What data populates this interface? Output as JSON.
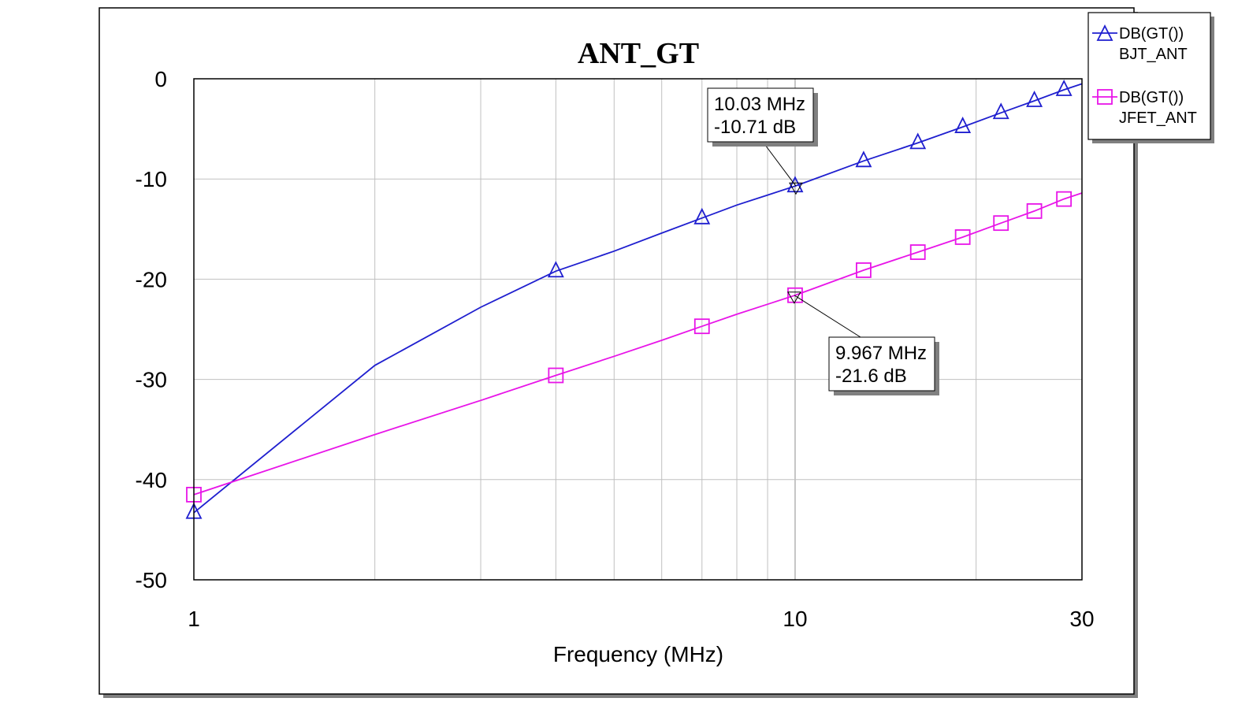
{
  "chart_data": {
    "type": "line",
    "title": "ANT_GT",
    "xlabel": "Frequency (MHz)",
    "ylabel": "",
    "x_scale": "log",
    "xlim": [
      1,
      30
    ],
    "ylim": [
      -50,
      0
    ],
    "x_ticks": [
      {
        "value": 1,
        "label": "1"
      },
      {
        "value": 10,
        "label": "10"
      },
      {
        "value": 30,
        "label": "30"
      }
    ],
    "y_ticks": [
      {
        "value": 0,
        "label": "0"
      },
      {
        "value": -10,
        "label": "-10"
      },
      {
        "value": -20,
        "label": "-20"
      },
      {
        "value": -30,
        "label": "-30"
      },
      {
        "value": -40,
        "label": "-40"
      },
      {
        "value": -50,
        "label": "-50"
      }
    ],
    "grid": true,
    "legend_position": "outside-top-right",
    "series": [
      {
        "name": "DB(GT())",
        "source": "BJT_ANT",
        "color": "#1f1fcf",
        "marker": "triangle",
        "x": [
          1,
          2,
          3,
          4,
          5,
          6,
          7,
          8,
          9,
          10,
          13,
          16,
          19,
          22,
          25,
          28,
          30
        ],
        "y": [
          -43.3,
          -28.6,
          -22.8,
          -19.2,
          -17.2,
          -15.4,
          -13.9,
          -12.6,
          -11.6,
          -10.71,
          -8.2,
          -6.4,
          -4.8,
          -3.4,
          -2.2,
          -1.1,
          -0.5
        ]
      },
      {
        "name": "DB(GT())",
        "source": "JFET_ANT",
        "color": "#e815e8",
        "marker": "square",
        "x": [
          1,
          2,
          3,
          4,
          5,
          6,
          7,
          8,
          9,
          10,
          13,
          16,
          19,
          22,
          25,
          28,
          30
        ],
        "y": [
          -41.5,
          -35.5,
          -32.1,
          -29.6,
          -27.7,
          -26.1,
          -24.7,
          -23.5,
          -22.5,
          -21.6,
          -19.1,
          -17.3,
          -15.8,
          -14.4,
          -13.2,
          -12.0,
          -11.4
        ]
      }
    ],
    "markers": [
      {
        "series": 0,
        "x": 10.03,
        "y": -10.71,
        "line1": "10.03 MHz",
        "line2": "-10.71 dB"
      },
      {
        "series": 1,
        "x": 9.967,
        "y": -21.6,
        "line1": "9.967 MHz",
        "line2": "-21.6 dB"
      }
    ]
  }
}
